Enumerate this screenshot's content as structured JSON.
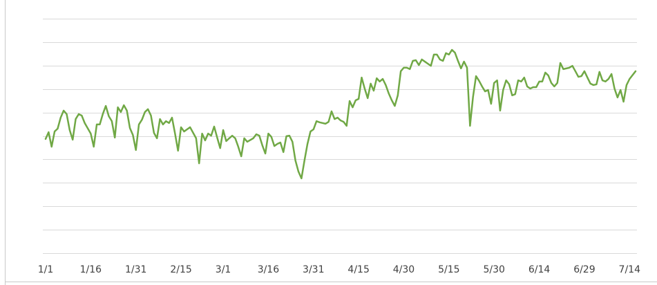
{
  "chart_data": {
    "type": "line",
    "xlim": [
      0,
      196
    ],
    "xticks": [
      {
        "value": 0,
        "label": "1/1"
      },
      {
        "value": 15,
        "label": "1/16"
      },
      {
        "value": 30,
        "label": "1/31"
      },
      {
        "value": 45,
        "label": "2/15"
      },
      {
        "value": 59,
        "label": "3/1"
      },
      {
        "value": 74,
        "label": "3/16"
      },
      {
        "value": 89,
        "label": "3/31"
      },
      {
        "value": 104,
        "label": "4/15"
      },
      {
        "value": 119,
        "label": "4/30"
      },
      {
        "value": 134,
        "label": "5/15"
      },
      {
        "value": 149,
        "label": "5/30"
      },
      {
        "value": 164,
        "label": "6/14"
      },
      {
        "value": 179,
        "label": "6/29"
      },
      {
        "value": 194,
        "label": "7/14"
      }
    ],
    "ylim": [
      0,
      10
    ],
    "yticks": [
      0,
      1,
      2,
      3,
      4,
      5,
      6,
      7,
      8,
      9,
      10
    ],
    "grid": true,
    "series": [
      {
        "color": "#70a845",
        "x": [
          0,
          1,
          2,
          3,
          4,
          5,
          6,
          7,
          8,
          9,
          10,
          11,
          12,
          13,
          15,
          16,
          17,
          18,
          19,
          20,
          21,
          22,
          23,
          24,
          25,
          26,
          27,
          28,
          29,
          30,
          31,
          32,
          33,
          34,
          35,
          36,
          37,
          38,
          39,
          40,
          41,
          42,
          43,
          44,
          45,
          46,
          47,
          48,
          50,
          51,
          52,
          53,
          54,
          55,
          56,
          57,
          58,
          59,
          60,
          61,
          62,
          63,
          64,
          65,
          66,
          67,
          69,
          70,
          71,
          72,
          73,
          74,
          75,
          76,
          77,
          78,
          79,
          80,
          81,
          82,
          83,
          84,
          85,
          86,
          87,
          88,
          89,
          90,
          91,
          93,
          94,
          95,
          96,
          97,
          98,
          99,
          100,
          101,
          102,
          103,
          104,
          105,
          106,
          107,
          108,
          109,
          110,
          111,
          112,
          113,
          114,
          115,
          116,
          117,
          118,
          119,
          120,
          121,
          122,
          123,
          124,
          125,
          126,
          127,
          128,
          129,
          130,
          131,
          132,
          133,
          134,
          135,
          136,
          137,
          138,
          139,
          140,
          141,
          142,
          143,
          144,
          145,
          146,
          147,
          148,
          149,
          150,
          151,
          152,
          153,
          154,
          155,
          156,
          157,
          158,
          159,
          160,
          161,
          162,
          163,
          164,
          165,
          166,
          167,
          168,
          169,
          170,
          171,
          172,
          173,
          174,
          175,
          176,
          177,
          178,
          179,
          180,
          181,
          182,
          183,
          184,
          185,
          186,
          187,
          188,
          189,
          190,
          191,
          192,
          193,
          194,
          196
        ],
        "values": [
          4.87,
          5.16,
          4.54,
          5.19,
          5.31,
          5.78,
          6.08,
          5.93,
          5.25,
          4.84,
          5.72,
          5.93,
          5.87,
          5.55,
          5.1,
          4.54,
          5.49,
          5.49,
          5.93,
          6.28,
          5.84,
          5.63,
          4.93,
          6.22,
          6.02,
          6.31,
          6.08,
          5.34,
          5.04,
          4.4,
          5.49,
          5.69,
          6.02,
          6.14,
          5.87,
          5.13,
          4.9,
          5.72,
          5.49,
          5.63,
          5.55,
          5.78,
          5.1,
          4.37,
          5.37,
          5.19,
          5.28,
          5.37,
          4.9,
          3.83,
          5.1,
          4.81,
          5.1,
          5.01,
          5.4,
          4.93,
          4.48,
          5.25,
          4.78,
          4.9,
          5.01,
          4.9,
          4.54,
          4.13,
          4.9,
          4.75,
          4.9,
          5.07,
          5.01,
          4.6,
          4.25,
          5.1,
          4.96,
          4.57,
          4.66,
          4.72,
          4.31,
          4.99,
          5.01,
          4.75,
          3.95,
          3.48,
          3.19,
          3.95,
          4.66,
          5.19,
          5.28,
          5.63,
          5.58,
          5.52,
          5.6,
          6.05,
          5.72,
          5.78,
          5.66,
          5.6,
          5.43,
          6.49,
          6.22,
          6.52,
          6.58,
          7.49,
          7.02,
          6.61,
          7.23,
          6.93,
          7.46,
          7.32,
          7.43,
          7.17,
          6.81,
          6.52,
          6.28,
          6.73,
          7.76,
          7.91,
          7.91,
          7.85,
          8.2,
          8.23,
          8.02,
          8.26,
          8.17,
          8.08,
          7.99,
          8.47,
          8.47,
          8.26,
          8.2,
          8.53,
          8.47,
          8.67,
          8.55,
          8.2,
          7.88,
          8.17,
          7.91,
          5.43,
          6.67,
          7.55,
          7.35,
          7.11,
          6.9,
          6.96,
          6.37,
          7.26,
          7.37,
          6.08,
          6.96,
          7.37,
          7.2,
          6.73,
          6.78,
          7.37,
          7.32,
          7.49,
          7.11,
          7.02,
          7.08,
          7.08,
          7.32,
          7.32,
          7.7,
          7.58,
          7.26,
          7.11,
          7.26,
          8.11,
          7.85,
          7.88,
          7.91,
          7.99,
          7.76,
          7.52,
          7.55,
          7.76,
          7.49,
          7.23,
          7.17,
          7.2,
          7.73,
          7.37,
          7.32,
          7.43,
          7.64,
          7.02,
          6.64,
          6.96,
          6.46,
          7.17,
          7.43,
          7.76
        ]
      }
    ]
  }
}
